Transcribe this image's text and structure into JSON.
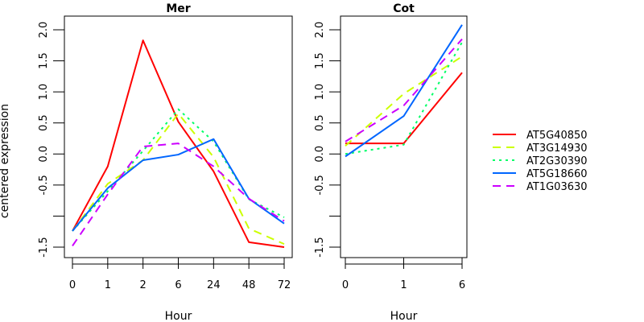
{
  "chart_data": [
    {
      "type": "line",
      "title": "Mer",
      "xlabel": "Hour",
      "ylabel": "centered expression",
      "x": [
        "0",
        "1",
        "2",
        "6",
        "24",
        "48",
        "72"
      ],
      "ylim": [
        -1.6,
        2.2
      ],
      "yticks": [
        "-1.5",
        "-1.0",
        "-0.5",
        "0.0",
        "0.5",
        "1.0",
        "1.5",
        "2.0"
      ],
      "ytick_values": [
        -1.5,
        -1.0,
        -0.5,
        0.0,
        0.5,
        1.0,
        1.5,
        2.0
      ],
      "ytick_labels_shown": [
        "-1.5",
        "",
        "-0.5",
        "0.0",
        "0.5",
        "1.0",
        "1.5",
        "2.0"
      ],
      "grid": false,
      "series": [
        {
          "name": "AT5G40850",
          "values": [
            -1.24,
            -0.2,
            1.83,
            0.52,
            -0.28,
            -1.42,
            -1.5
          ]
        },
        {
          "name": "AT3G14930",
          "values": [
            -1.24,
            -0.48,
            -0.1,
            0.65,
            -0.05,
            -1.2,
            -1.45
          ]
        },
        {
          "name": "AT2G30390",
          "values": [
            -1.24,
            -0.6,
            0.05,
            0.72,
            0.2,
            -0.73,
            -1.02
          ]
        },
        {
          "name": "AT5G18660",
          "values": [
            -1.24,
            -0.55,
            -0.1,
            -0.01,
            0.24,
            -0.72,
            -1.12
          ]
        },
        {
          "name": "AT1G03630",
          "values": [
            -1.48,
            -0.65,
            0.12,
            0.17,
            -0.2,
            -0.72,
            -1.08
          ]
        }
      ]
    },
    {
      "type": "line",
      "title": "Cot",
      "xlabel": "Hour",
      "x": [
        "0",
        "1",
        "6"
      ],
      "ylim": [
        -1.6,
        2.2
      ],
      "yticks": [
        "-1.5",
        "-1.0",
        "-0.5",
        "0.0",
        "0.5",
        "1.0",
        "1.5",
        "2.0"
      ],
      "ytick_values": [
        -1.5,
        -1.0,
        -0.5,
        0.0,
        0.5,
        1.0,
        1.5,
        2.0
      ],
      "ytick_labels_shown": [
        "-1.5",
        "",
        "-0.5",
        "0.0",
        "0.5",
        "1.0",
        "1.5",
        "2.0"
      ],
      "grid": false,
      "series": [
        {
          "name": "AT5G40850",
          "values": [
            0.17,
            0.17,
            1.31
          ]
        },
        {
          "name": "AT3G14930",
          "values": [
            0.13,
            0.97,
            1.57
          ]
        },
        {
          "name": "AT2G30390",
          "values": [
            0.0,
            0.15,
            1.8
          ]
        },
        {
          "name": "AT5G18660",
          "values": [
            -0.04,
            0.61,
            2.08
          ]
        },
        {
          "name": "AT1G03630",
          "values": [
            0.2,
            0.78,
            1.85
          ]
        }
      ]
    }
  ],
  "legend": {
    "placement": "right",
    "entries": [
      {
        "name": "AT5G40850",
        "color": "#ff0000",
        "style": "solid"
      },
      {
        "name": "AT3G14930",
        "color": "#ccff00",
        "style": "dashed"
      },
      {
        "name": "AT2G30390",
        "color": "#00ff66",
        "style": "dotted"
      },
      {
        "name": "AT5G18660",
        "color": "#0066ff",
        "style": "solid"
      },
      {
        "name": "AT1G03630",
        "color": "#cc00ff",
        "style": "dashed"
      }
    ]
  }
}
